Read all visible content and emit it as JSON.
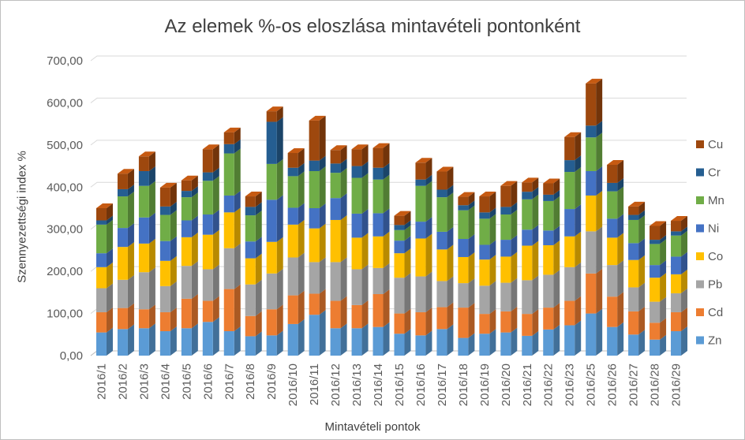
{
  "chart_data": {
    "type": "bar",
    "stacked": true,
    "three_d": true,
    "title": "Az elemek %-os eloszlása mintavételi pontonként",
    "xlabel": "Mintavételi pontok",
    "ylabel": "Szennyezettségi index %",
    "ylim": [
      0,
      700
    ],
    "yticks": [
      "0,00",
      "100,00",
      "200,00",
      "300,00",
      "400,00",
      "500,00",
      "600,00",
      "700,00"
    ],
    "grid": true,
    "legend_position": "right",
    "categories": [
      "2016/1",
      "2016/2",
      "2016/3",
      "2016/4",
      "2016/5",
      "2016/6",
      "2016/7",
      "2016/8",
      "2016/9",
      "2016/10",
      "2016/11",
      "2016/12",
      "2016/13",
      "2016/14",
      "2016/15",
      "2016/16",
      "2016/17",
      "2016/18",
      "2016/19",
      "2016/20",
      "2016/21",
      "2016/22",
      "2016/23",
      "2016/25",
      "2016/26",
      "2016/27",
      "2016/28",
      "2016/29"
    ],
    "series": [
      {
        "name": "Zn",
        "color": "#5b9bd5",
        "values": [
          55,
          63,
          65,
          58,
          65,
          80,
          58,
          46,
          48,
          75,
          97,
          65,
          65,
          68,
          52,
          48,
          63,
          42,
          52,
          55,
          47,
          62,
          72,
          100,
          68,
          50,
          38,
          58
        ]
      },
      {
        "name": "Cd",
        "color": "#ed7d31",
        "values": [
          48,
          50,
          45,
          45,
          70,
          50,
          100,
          48,
          62,
          68,
          50,
          65,
          55,
          78,
          48,
          55,
          52,
          72,
          47,
          50,
          52,
          52,
          58,
          95,
          72,
          55,
          40,
          45
        ]
      },
      {
        "name": "Pb",
        "color": "#a5a5a5",
        "values": [
          57,
          67,
          88,
          62,
          78,
          75,
          97,
          75,
          85,
          90,
          75,
          92,
          85,
          62,
          85,
          85,
          62,
          58,
          67,
          68,
          80,
          78,
          80,
          100,
          75,
          57,
          50,
          45
        ]
      },
      {
        "name": "Co",
        "color": "#ffc000",
        "values": [
          50,
          78,
          68,
          60,
          68,
          82,
          85,
          62,
          75,
          78,
          80,
          100,
          75,
          75,
          58,
          90,
          75,
          62,
          62,
          62,
          82,
          70,
          73,
          85,
          65,
          65,
          57,
          45
        ]
      },
      {
        "name": "Ni",
        "color": "#4472c4",
        "values": [
          33,
          45,
          62,
          47,
          40,
          48,
          40,
          40,
          100,
          40,
          48,
          52,
          57,
          55,
          30,
          40,
          42,
          43,
          35,
          40,
          38,
          35,
          65,
          58,
          45,
          40,
          30,
          42
        ]
      },
      {
        "name": "Mn",
        "color": "#70ad47",
        "values": [
          68,
          75,
          75,
          62,
          55,
          80,
          100,
          62,
          85,
          75,
          88,
          60,
          85,
          80,
          25,
          85,
          82,
          68,
          62,
          60,
          72,
          70,
          88,
          80,
          65,
          55,
          50,
          50
        ]
      },
      {
        "name": "Cr",
        "color": "#255e91",
        "values": [
          10,
          17,
          35,
          20,
          15,
          20,
          22,
          20,
          100,
          20,
          25,
          22,
          28,
          28,
          12,
          15,
          18,
          12,
          15,
          18,
          18,
          15,
          28,
          28,
          20,
          12,
          10,
          10
        ]
      },
      {
        "name": "Cu",
        "color": "#9e480e",
        "values": [
          29,
          37,
          35,
          45,
          25,
          55,
          28,
          25,
          25,
          35,
          95,
          32,
          40,
          47,
          22,
          40,
          43,
          20,
          38,
          50,
          22,
          27,
          55,
          100,
          43,
          20,
          33,
          25
        ]
      }
    ]
  }
}
